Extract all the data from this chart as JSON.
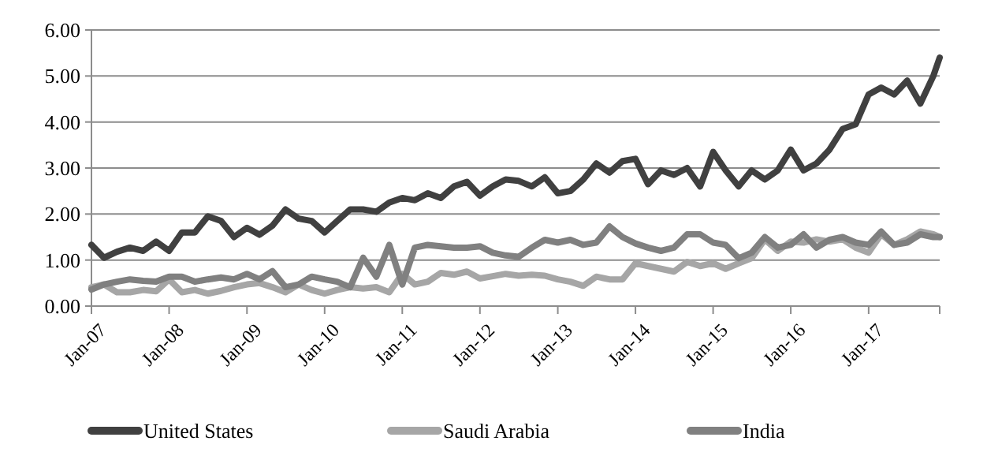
{
  "chart_data": {
    "type": "line",
    "x": [
      "2007-01",
      "2007-03",
      "2007-05",
      "2007-07",
      "2007-09",
      "2007-11",
      "2008-01",
      "2008-03",
      "2008-05",
      "2008-07",
      "2008-09",
      "2008-11",
      "2009-01",
      "2009-03",
      "2009-05",
      "2009-07",
      "2009-09",
      "2009-11",
      "2010-01",
      "2010-03",
      "2010-05",
      "2010-07",
      "2010-09",
      "2010-11",
      "2011-01",
      "2011-03",
      "2011-05",
      "2011-07",
      "2011-09",
      "2011-11",
      "2012-01",
      "2012-03",
      "2012-05",
      "2012-07",
      "2012-09",
      "2012-11",
      "2013-01",
      "2013-03",
      "2013-05",
      "2013-07",
      "2013-09",
      "2013-11",
      "2014-01",
      "2014-03",
      "2014-05",
      "2014-07",
      "2014-09",
      "2014-11",
      "2015-01",
      "2015-03",
      "2015-05",
      "2015-07",
      "2015-09",
      "2015-11",
      "2016-01",
      "2016-03",
      "2016-05",
      "2016-07",
      "2016-09",
      "2016-11",
      "2017-01",
      "2017-03",
      "2017-05",
      "2017-07",
      "2017-09",
      "2017-11",
      "2017-12"
    ],
    "series": [
      {
        "name": "United States",
        "color": "#404040",
        "values": [
          1.33,
          1.05,
          1.18,
          1.27,
          1.2,
          1.4,
          1.2,
          1.6,
          1.6,
          1.95,
          1.85,
          1.5,
          1.7,
          1.55,
          1.75,
          2.1,
          1.9,
          1.85,
          1.6,
          1.85,
          2.1,
          2.1,
          2.05,
          2.25,
          2.35,
          2.3,
          2.45,
          2.35,
          2.6,
          2.7,
          2.4,
          2.6,
          2.75,
          2.72,
          2.6,
          2.8,
          2.45,
          2.5,
          2.75,
          3.1,
          2.9,
          3.15,
          3.2,
          2.65,
          2.95,
          2.85,
          3.0,
          2.6,
          3.35,
          2.95,
          2.6,
          2.95,
          2.75,
          2.95,
          3.4,
          2.95,
          3.1,
          3.4,
          3.85,
          3.95,
          4.6,
          4.75,
          4.6,
          4.9,
          4.4,
          5.0,
          5.4
        ]
      },
      {
        "name": "Saudi Arabia",
        "color": "#a6a6a6",
        "values": [
          0.41,
          0.47,
          0.3,
          0.3,
          0.35,
          0.32,
          0.58,
          0.3,
          0.35,
          0.27,
          0.33,
          0.41,
          0.47,
          0.5,
          0.41,
          0.3,
          0.47,
          0.35,
          0.27,
          0.35,
          0.41,
          0.38,
          0.41,
          0.3,
          0.7,
          0.47,
          0.53,
          0.72,
          0.68,
          0.75,
          0.6,
          0.65,
          0.7,
          0.66,
          0.68,
          0.66,
          0.58,
          0.53,
          0.44,
          0.64,
          0.58,
          0.58,
          0.93,
          0.87,
          0.81,
          0.75,
          0.96,
          0.87,
          0.93,
          0.81,
          0.93,
          1.04,
          1.45,
          1.2,
          1.4,
          1.38,
          1.45,
          1.4,
          1.45,
          1.27,
          1.16,
          1.56,
          1.33,
          1.45,
          1.62,
          1.56,
          1.5
        ]
      },
      {
        "name": "India",
        "color": "#808080",
        "values": [
          0.36,
          0.47,
          0.53,
          0.58,
          0.55,
          0.53,
          0.64,
          0.64,
          0.53,
          0.58,
          0.62,
          0.58,
          0.7,
          0.58,
          0.76,
          0.41,
          0.47,
          0.64,
          0.58,
          0.53,
          0.41,
          1.05,
          0.64,
          1.33,
          0.47,
          1.27,
          1.33,
          1.3,
          1.27,
          1.27,
          1.3,
          1.16,
          1.1,
          1.07,
          1.27,
          1.44,
          1.38,
          1.44,
          1.33,
          1.38,
          1.73,
          1.5,
          1.36,
          1.27,
          1.2,
          1.27,
          1.56,
          1.56,
          1.38,
          1.33,
          1.04,
          1.16,
          1.5,
          1.27,
          1.33,
          1.56,
          1.27,
          1.44,
          1.5,
          1.38,
          1.33,
          1.62,
          1.33,
          1.38,
          1.56,
          1.5,
          1.5
        ]
      }
    ],
    "xlim": [
      "2007-01",
      "2017-12"
    ],
    "xticks": [
      {
        "value": "2007-01",
        "label": "Jan-07"
      },
      {
        "value": "2008-01",
        "label": "Jan-08"
      },
      {
        "value": "2009-01",
        "label": "Jan-09"
      },
      {
        "value": "2010-01",
        "label": "Jan-10"
      },
      {
        "value": "2011-01",
        "label": "Jan-11"
      },
      {
        "value": "2012-01",
        "label": "Jan-12"
      },
      {
        "value": "2013-01",
        "label": "Jan-13"
      },
      {
        "value": "2014-01",
        "label": "Jan-14"
      },
      {
        "value": "2015-01",
        "label": "Jan-15"
      },
      {
        "value": "2016-01",
        "label": "Jan-16"
      },
      {
        "value": "2017-01",
        "label": "Jan-17"
      }
    ],
    "ylim": [
      0,
      6
    ],
    "yticks": [
      {
        "value": 0,
        "label": "0.00"
      },
      {
        "value": 1,
        "label": "1.00"
      },
      {
        "value": 2,
        "label": "2.00"
      },
      {
        "value": 3,
        "label": "3.00"
      },
      {
        "value": 4,
        "label": "4.00"
      },
      {
        "value": 5,
        "label": "5.00"
      },
      {
        "value": 6,
        "label": "6.00"
      }
    ],
    "grid": "y",
    "legend": "bottom",
    "marker": "none",
    "line_style": "solid"
  }
}
